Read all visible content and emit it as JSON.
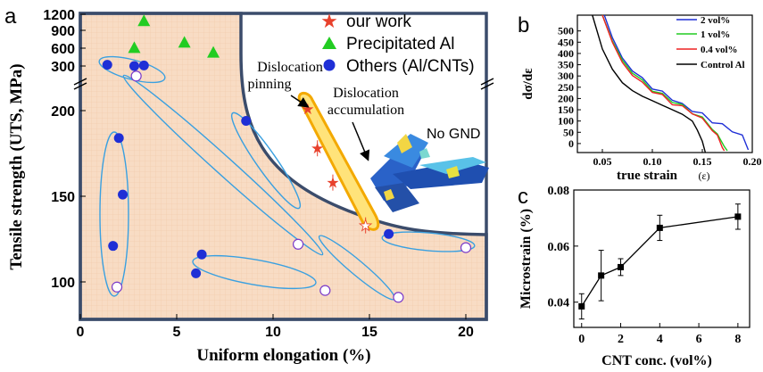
{
  "chart_data": [
    {
      "panel": "a",
      "type": "scatter",
      "xlabel": "Uniform elongation (%)",
      "ylabel": "Tensile strength (UTS, MPa)",
      "xlim": [
        0,
        21
      ],
      "x_ticks": [
        "0",
        "5",
        "10",
        "15",
        "20"
      ],
      "y_ticks_lower": [
        "100",
        "150",
        "200"
      ],
      "y_ticks_upper": [
        "300",
        "600",
        "900",
        "1200"
      ],
      "series": [
        {
          "name": "our work",
          "marker": "star",
          "color": "#e8412c",
          "points": [
            [
              11.8,
              201
            ],
            [
              12.3,
              178
            ],
            [
              13.1,
              158
            ],
            [
              14.8,
              133
            ]
          ]
        },
        {
          "name": "Precipitated Al",
          "marker": "triangle",
          "color": "#22cc22",
          "points": [
            [
              3.3,
              1080
            ],
            [
              2.8,
              610
            ],
            [
              5.4,
              700
            ],
            [
              6.9,
              530
            ]
          ]
        },
        {
          "name": "Others (Al/CNTs)",
          "marker": "circle",
          "color": "#1f2fd6",
          "points": [
            [
              1.4,
              320
            ],
            [
              2.8,
              300
            ],
            [
              3.3,
              310
            ],
            [
              2.0,
              184
            ],
            [
              2.2,
              151
            ],
            [
              1.7,
              121
            ],
            [
              8.6,
              194
            ],
            [
              6.3,
              116
            ],
            [
              6.0,
              105
            ],
            [
              16.0,
              128
            ]
          ],
          "open_points": [
            [
              2.9,
              255
            ],
            [
              11.3,
              122
            ],
            [
              1.9,
              97
            ],
            [
              12.7,
              95
            ],
            [
              16.5,
              91
            ],
            [
              20.0,
              120
            ]
          ]
        }
      ],
      "annotations": [
        "Dislocation pinning",
        "Dislocation accumulation",
        "No GND"
      ],
      "colors": {
        "shaded_region": "#f8dcc4",
        "highlight": "#ffe37a",
        "highlight_border": "#f3a900",
        "ellipse": "#3aa0e0",
        "frame": "#3b4c6b"
      }
    },
    {
      "panel": "b",
      "type": "line",
      "xlabel": "true strain",
      "xlabel_unit": "(ε)",
      "ylabel": "dσ/dε",
      "xlim": [
        0.025,
        0.2
      ],
      "ylim": [
        -40,
        570
      ],
      "x_ticks": [
        "0.05",
        "0.10",
        "0.15",
        "0.20"
      ],
      "y_ticks": [
        "0",
        "50",
        "100",
        "150",
        "200",
        "250",
        "300",
        "350",
        "400",
        "450",
        "500"
      ],
      "series": [
        {
          "name": "2 vol%",
          "color": "#1f2fd6",
          "x": [
            0.052,
            0.06,
            0.07,
            0.08,
            0.09,
            0.1,
            0.11,
            0.12,
            0.13,
            0.14,
            0.15,
            0.16,
            0.17,
            0.18,
            0.19,
            0.196
          ],
          "y": [
            570,
            470,
            380,
            330,
            285,
            250,
            225,
            200,
            170,
            150,
            128,
            100,
            80,
            60,
            30,
            -20
          ]
        },
        {
          "name": "1 vol%",
          "color": "#22cc22",
          "x": [
            0.05,
            0.06,
            0.07,
            0.08,
            0.09,
            0.1,
            0.11,
            0.12,
            0.13,
            0.14,
            0.15,
            0.16,
            0.165,
            0.172,
            0.175
          ],
          "y": [
            570,
            455,
            370,
            320,
            275,
            240,
            215,
            190,
            165,
            140,
            110,
            70,
            35,
            -5,
            -40
          ]
        },
        {
          "name": "0.4 vol%",
          "color": "#ee2222",
          "x": [
            0.05,
            0.06,
            0.07,
            0.08,
            0.09,
            0.1,
            0.11,
            0.12,
            0.13,
            0.14,
            0.15,
            0.16,
            0.165,
            0.17,
            0.172
          ],
          "y": [
            570,
            450,
            360,
            310,
            265,
            235,
            210,
            180,
            160,
            140,
            105,
            65,
            30,
            -10,
            -40
          ]
        },
        {
          "name": "Control Al",
          "color": "#000000",
          "x": [
            0.04,
            0.05,
            0.06,
            0.07,
            0.08,
            0.09,
            0.1,
            0.11,
            0.12,
            0.13,
            0.14,
            0.145,
            0.15,
            0.153
          ],
          "y": [
            570,
            420,
            330,
            270,
            235,
            210,
            190,
            170,
            150,
            130,
            100,
            60,
            10,
            -40
          ]
        }
      ]
    },
    {
      "panel": "c",
      "type": "line",
      "xlabel": "CNT conc. (vol%)",
      "ylabel": "Microstrain (%)",
      "xlim": [
        -0.4,
        8.6
      ],
      "ylim": [
        0.031,
        0.08
      ],
      "x_ticks": [
        "0",
        "2",
        "4",
        "6",
        "8"
      ],
      "y_ticks": [
        "0.04",
        "0.06",
        "0.08"
      ],
      "series": [
        {
          "marker": "square",
          "color": "#000000",
          "x": [
            0,
            1,
            2,
            4,
            8
          ],
          "y": [
            0.0385,
            0.0495,
            0.0525,
            0.0665,
            0.0705
          ],
          "err": [
            0.0045,
            0.009,
            0.003,
            0.0045,
            0.0045
          ]
        }
      ]
    }
  ],
  "panels": {
    "a": "a",
    "b": "b",
    "c": "c"
  },
  "legend": {
    "our_work": "our work",
    "precipitated": "Precipitated Al",
    "others": "Others (Al/CNTs)"
  },
  "annotations": {
    "pinning_line1": "Dislocation",
    "pinning_line2": "pinning",
    "accum_line1": "Dislocation",
    "accum_line2": "accumulation",
    "no_gnd": "No GND"
  },
  "axes": {
    "a_xlabel": "Uniform elongation (%)",
    "a_ylabel": "Tensile strength (UTS, MPa)",
    "b_xlabel": "true strain",
    "b_xunit": "(ε)",
    "b_ylabel": "dσ/dε",
    "c_xlabel": "CNT conc. (vol%)",
    "c_ylabel": "Microstrain (%)"
  }
}
